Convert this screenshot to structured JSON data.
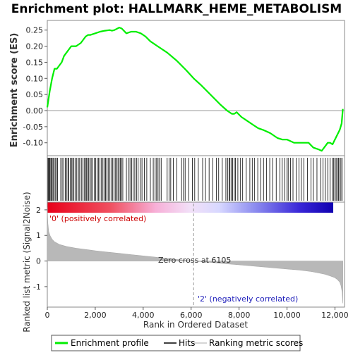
{
  "chart_data": {
    "type": "line",
    "title": "Enrichment plot: HALLMARK_HEME_METABOLISM",
    "xlabel": "Rank in Ordered Dataset",
    "ylabel_top": "Enrichment score (ES)",
    "ylabel_bottom": "Ranked list metric (Signal2Noise)",
    "x_range": [
      0,
      12400
    ],
    "x_ticks": [
      0,
      2000,
      4000,
      6000,
      8000,
      10000,
      12000
    ],
    "x_tick_labels": [
      "0",
      "2,000",
      "4,000",
      "6,000",
      "8,000",
      "10,000",
      "12,000"
    ],
    "es_range": [
      -0.14,
      0.28
    ],
    "es_ticks": [
      0.25,
      0.2,
      0.15,
      0.1,
      0.05,
      0.0,
      -0.05,
      -0.1
    ],
    "es_tick_labels": [
      "0.25",
      "0.20",
      "0.15",
      "0.10",
      "0.05",
      "0.00",
      "-0.05",
      "-0.10"
    ],
    "metric_range": [
      -1.8,
      2.3
    ],
    "metric_ticks": [
      2,
      1,
      0,
      -1
    ],
    "metric_tick_labels": [
      "2",
      "1",
      "0",
      "-1"
    ],
    "enrichment_profile": {
      "name": "Enrichment profile",
      "color": "#00ee00",
      "x": [
        0,
        100,
        200,
        300,
        400,
        500,
        600,
        700,
        800,
        900,
        1000,
        1200,
        1400,
        1600,
        1700,
        1800,
        2000,
        2200,
        2400,
        2600,
        2700,
        2800,
        3000,
        3100,
        3300,
        3500,
        3700,
        3900,
        4100,
        4300,
        4600,
        5000,
        5400,
        5800,
        6105,
        6400,
        6800,
        7200,
        7500,
        7700,
        7800,
        7900,
        8100,
        8300,
        8600,
        8800,
        9000,
        9300,
        9600,
        9800,
        10000,
        10300,
        10600,
        10900,
        11100,
        11300,
        11450,
        11600,
        11700,
        11800,
        11900,
        12000,
        12100,
        12200,
        12280,
        12330
      ],
      "y": [
        0.01,
        0.06,
        0.1,
        0.13,
        0.13,
        0.14,
        0.15,
        0.17,
        0.18,
        0.19,
        0.2,
        0.2,
        0.21,
        0.23,
        0.235,
        0.235,
        0.24,
        0.245,
        0.248,
        0.25,
        0.248,
        0.25,
        0.258,
        0.255,
        0.24,
        0.245,
        0.245,
        0.24,
        0.23,
        0.215,
        0.2,
        0.18,
        0.155,
        0.125,
        0.1,
        0.08,
        0.05,
        0.02,
        0.0,
        -0.01,
        -0.01,
        -0.005,
        -0.02,
        -0.03,
        -0.045,
        -0.055,
        -0.06,
        -0.07,
        -0.085,
        -0.09,
        -0.09,
        -0.1,
        -0.1,
        -0.1,
        -0.115,
        -0.12,
        -0.125,
        -0.11,
        -0.1,
        -0.1,
        -0.105,
        -0.09,
        -0.075,
        -0.06,
        -0.04,
        0.005
      ]
    },
    "hits": [
      30,
      60,
      90,
      120,
      160,
      200,
      240,
      280,
      330,
      380,
      430,
      560,
      620,
      690,
      750,
      800,
      860,
      900,
      960,
      1010,
      1060,
      1110,
      1170,
      1230,
      1300,
      1350,
      1420,
      1480,
      1540,
      1600,
      1640,
      1690,
      1730,
      1780,
      1830,
      1900,
      1960,
      2020,
      2080,
      2130,
      2200,
      2260,
      2320,
      2380,
      2430,
      2480,
      2540,
      2600,
      2660,
      2730,
      2790,
      2850,
      2900,
      2950,
      3000,
      3050,
      3100,
      3150,
      3300,
      3380,
      3450,
      3520,
      3580,
      3650,
      3720,
      3790,
      3880,
      3950,
      4050,
      4150,
      4300,
      4420,
      4500,
      4560,
      4620,
      4680,
      4750,
      5000,
      5080,
      5150,
      5260,
      5400,
      5600,
      5680,
      5750,
      5900,
      6050,
      6150,
      6300,
      6480,
      6600,
      6750,
      6900,
      7050,
      7150,
      7300,
      7450,
      7520,
      7580,
      7620,
      7680,
      7730,
      7800,
      7850,
      7950,
      8050,
      8150,
      8300,
      8450,
      8550,
      8650,
      8780,
      8900,
      9020,
      9150,
      9280,
      9400,
      9550,
      9700,
      9800,
      9900,
      10000,
      10050,
      10150,
      10250,
      10380,
      10500,
      10600,
      10700,
      10850,
      11000,
      11100,
      11250,
      11400,
      11500,
      11600,
      11700,
      11800,
      11900,
      11950,
      12000,
      12050,
      12100,
      12150,
      12200,
      12250,
      12300
    ],
    "metric_profile": {
      "name": "Ranking metric scores",
      "color": "#b0b0b0",
      "x": [
        0,
        20,
        60,
        120,
        200,
        300,
        500,
        800,
        1200,
        1600,
        2000,
        2500,
        3000,
        3500,
        4000,
        4500,
        5000,
        5500,
        6105,
        6500,
        7000,
        7500,
        8000,
        8500,
        9000,
        9500,
        10000,
        10500,
        11000,
        11300,
        11600,
        11800,
        12000,
        12100,
        12200,
        12250,
        12300,
        12330
      ],
      "y": [
        2.1,
        1.5,
        1.15,
        0.98,
        0.85,
        0.75,
        0.65,
        0.57,
        0.5,
        0.45,
        0.4,
        0.35,
        0.3,
        0.25,
        0.2,
        0.15,
        0.1,
        0.05,
        0.0,
        -0.03,
        -0.07,
        -0.11,
        -0.15,
        -0.19,
        -0.23,
        -0.27,
        -0.31,
        -0.35,
        -0.41,
        -0.46,
        -0.52,
        -0.58,
        -0.65,
        -0.72,
        -0.82,
        -0.95,
        -1.2,
        -1.65
      ]
    },
    "zero_cross_label": "Zero cross at 6105",
    "zero_cross_x": 6105,
    "pos_label": "'0' (positively correlated)",
    "neg_label": "'2' (negatively correlated)",
    "colors": {
      "pos": "#e0001e",
      "neg": "#1800c8",
      "neutral": "#e8e8ff"
    },
    "legend": [
      "Enrichment profile",
      "Hits",
      "Ranking metric scores"
    ]
  }
}
